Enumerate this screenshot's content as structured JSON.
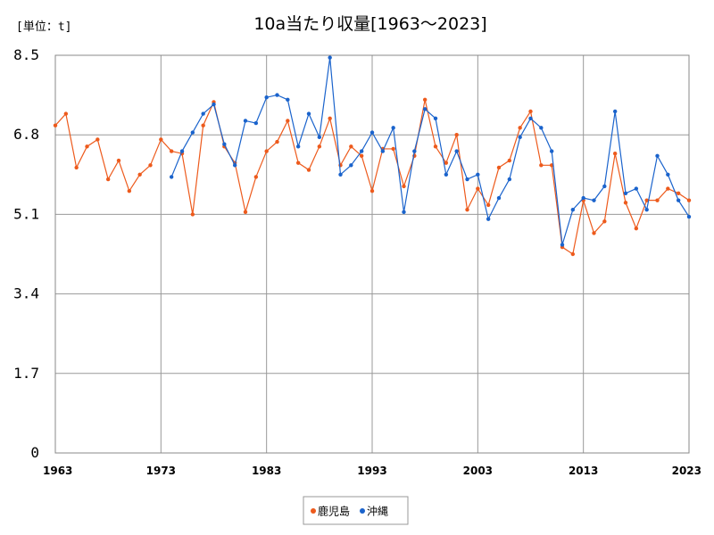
{
  "chart_data": {
    "type": "line",
    "title": "10a当たり収量[1963〜2023]",
    "unit_label": "[単位：t]",
    "xlabel": "",
    "ylabel": "",
    "xlim": [
      1963,
      2023
    ],
    "ylim": [
      0,
      8.5
    ],
    "yticks": [
      0,
      1.7,
      3.4,
      5.1,
      6.8,
      8.5
    ],
    "ytick_labels": [
      "0",
      "1.7",
      "3.4",
      "5.1",
      "6.8",
      "8.5"
    ],
    "xticks": [
      1963,
      1973,
      1983,
      1993,
      2003,
      2013,
      2023
    ],
    "xtick_labels": [
      "1963",
      "1973",
      "1983",
      "1993",
      "2003",
      "2013",
      "2023"
    ],
    "grid": true,
    "legend_position": "bottom-center",
    "series": [
      {
        "name": "鹿児島",
        "color": "#ed5a1c",
        "points": [
          [
            1963,
            7.0
          ],
          [
            1964,
            7.25
          ],
          [
            1965,
            6.1
          ],
          [
            1966,
            6.55
          ],
          [
            1967,
            6.7
          ],
          [
            1968,
            5.85
          ],
          [
            1969,
            6.25
          ],
          [
            1970,
            5.6
          ],
          [
            1971,
            5.95
          ],
          [
            1972,
            6.15
          ],
          [
            1973,
            6.7
          ],
          [
            1974,
            6.45
          ],
          [
            1975,
            6.4
          ],
          [
            1976,
            5.1
          ],
          [
            1977,
            7.0
          ],
          [
            1978,
            7.5
          ],
          [
            1979,
            6.55
          ],
          [
            1980,
            6.2
          ],
          [
            1981,
            5.15
          ],
          [
            1982,
            5.9
          ],
          [
            1983,
            6.45
          ],
          [
            1984,
            6.65
          ],
          [
            1985,
            7.1
          ],
          [
            1986,
            6.2
          ],
          [
            1987,
            6.05
          ],
          [
            1988,
            6.55
          ],
          [
            1989,
            7.15
          ],
          [
            1990,
            6.15
          ],
          [
            1991,
            6.55
          ],
          [
            1992,
            6.35
          ],
          [
            1993,
            5.6
          ],
          [
            1994,
            6.5
          ],
          [
            1995,
            6.5
          ],
          [
            1996,
            5.7
          ],
          [
            1997,
            6.35
          ],
          [
            1998,
            7.55
          ],
          [
            1999,
            6.55
          ],
          [
            2000,
            6.2
          ],
          [
            2001,
            6.8
          ],
          [
            2002,
            5.2
          ],
          [
            2003,
            5.65
          ],
          [
            2004,
            5.3
          ],
          [
            2005,
            6.1
          ],
          [
            2006,
            6.25
          ],
          [
            2007,
            6.95
          ],
          [
            2008,
            7.3
          ],
          [
            2009,
            6.15
          ],
          [
            2010,
            6.15
          ],
          [
            2011,
            4.4
          ],
          [
            2012,
            4.25
          ],
          [
            2013,
            5.4
          ],
          [
            2014,
            4.7
          ],
          [
            2015,
            4.95
          ],
          [
            2016,
            6.4
          ],
          [
            2017,
            5.35
          ],
          [
            2018,
            4.8
          ],
          [
            2019,
            5.4
          ],
          [
            2020,
            5.4
          ],
          [
            2021,
            5.65
          ],
          [
            2022,
            5.55
          ],
          [
            2023,
            5.4
          ]
        ]
      },
      {
        "name": "沖縄",
        "color": "#1a63cc",
        "points": [
          [
            1974,
            5.9
          ],
          [
            1975,
            6.45
          ],
          [
            1976,
            6.85
          ],
          [
            1977,
            7.25
          ],
          [
            1978,
            7.45
          ],
          [
            1979,
            6.6
          ],
          [
            1980,
            6.15
          ],
          [
            1981,
            7.1
          ],
          [
            1982,
            7.05
          ],
          [
            1983,
            7.6
          ],
          [
            1984,
            7.65
          ],
          [
            1985,
            7.55
          ],
          [
            1986,
            6.55
          ],
          [
            1987,
            7.25
          ],
          [
            1988,
            6.75
          ],
          [
            1989,
            8.45
          ],
          [
            1990,
            5.95
          ],
          [
            1991,
            6.15
          ],
          [
            1992,
            6.45
          ],
          [
            1993,
            6.85
          ],
          [
            1994,
            6.45
          ],
          [
            1995,
            6.95
          ],
          [
            1996,
            5.15
          ],
          [
            1997,
            6.45
          ],
          [
            1998,
            7.35
          ],
          [
            1999,
            7.15
          ],
          [
            2000,
            5.95
          ],
          [
            2001,
            6.45
          ],
          [
            2002,
            5.85
          ],
          [
            2003,
            5.95
          ],
          [
            2004,
            5.0
          ],
          [
            2005,
            5.45
          ],
          [
            2006,
            5.85
          ],
          [
            2007,
            6.75
          ],
          [
            2008,
            7.15
          ],
          [
            2009,
            6.95
          ],
          [
            2010,
            6.45
          ],
          [
            2011,
            4.45
          ],
          [
            2012,
            5.2
          ],
          [
            2013,
            5.45
          ],
          [
            2014,
            5.4
          ],
          [
            2015,
            5.7
          ],
          [
            2016,
            7.3
          ],
          [
            2017,
            5.55
          ],
          [
            2018,
            5.65
          ],
          [
            2019,
            5.2
          ],
          [
            2020,
            6.35
          ],
          [
            2021,
            5.95
          ],
          [
            2022,
            5.4
          ],
          [
            2023,
            5.05
          ]
        ]
      }
    ]
  }
}
